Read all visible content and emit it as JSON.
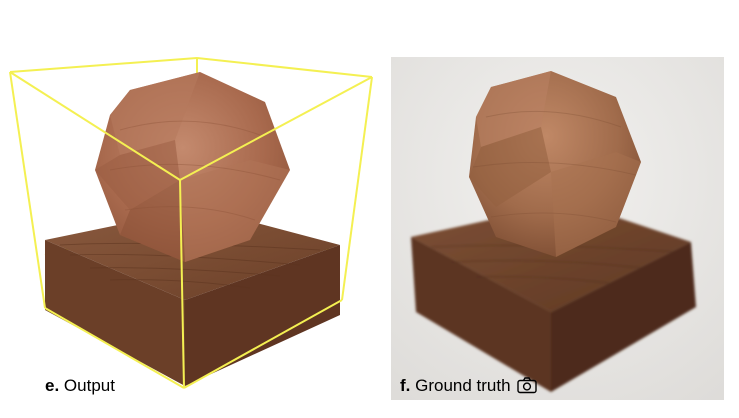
{
  "panels": [
    {
      "letter": "e.",
      "label": "Output"
    },
    {
      "letter": "f.",
      "label": "Ground truth",
      "icon": "camera-icon"
    }
  ],
  "colors": {
    "bbox": "#f4f052",
    "wood_light": "#b07458",
    "wood_dark": "#6e4029",
    "photo_bg": "#ecebe9"
  }
}
